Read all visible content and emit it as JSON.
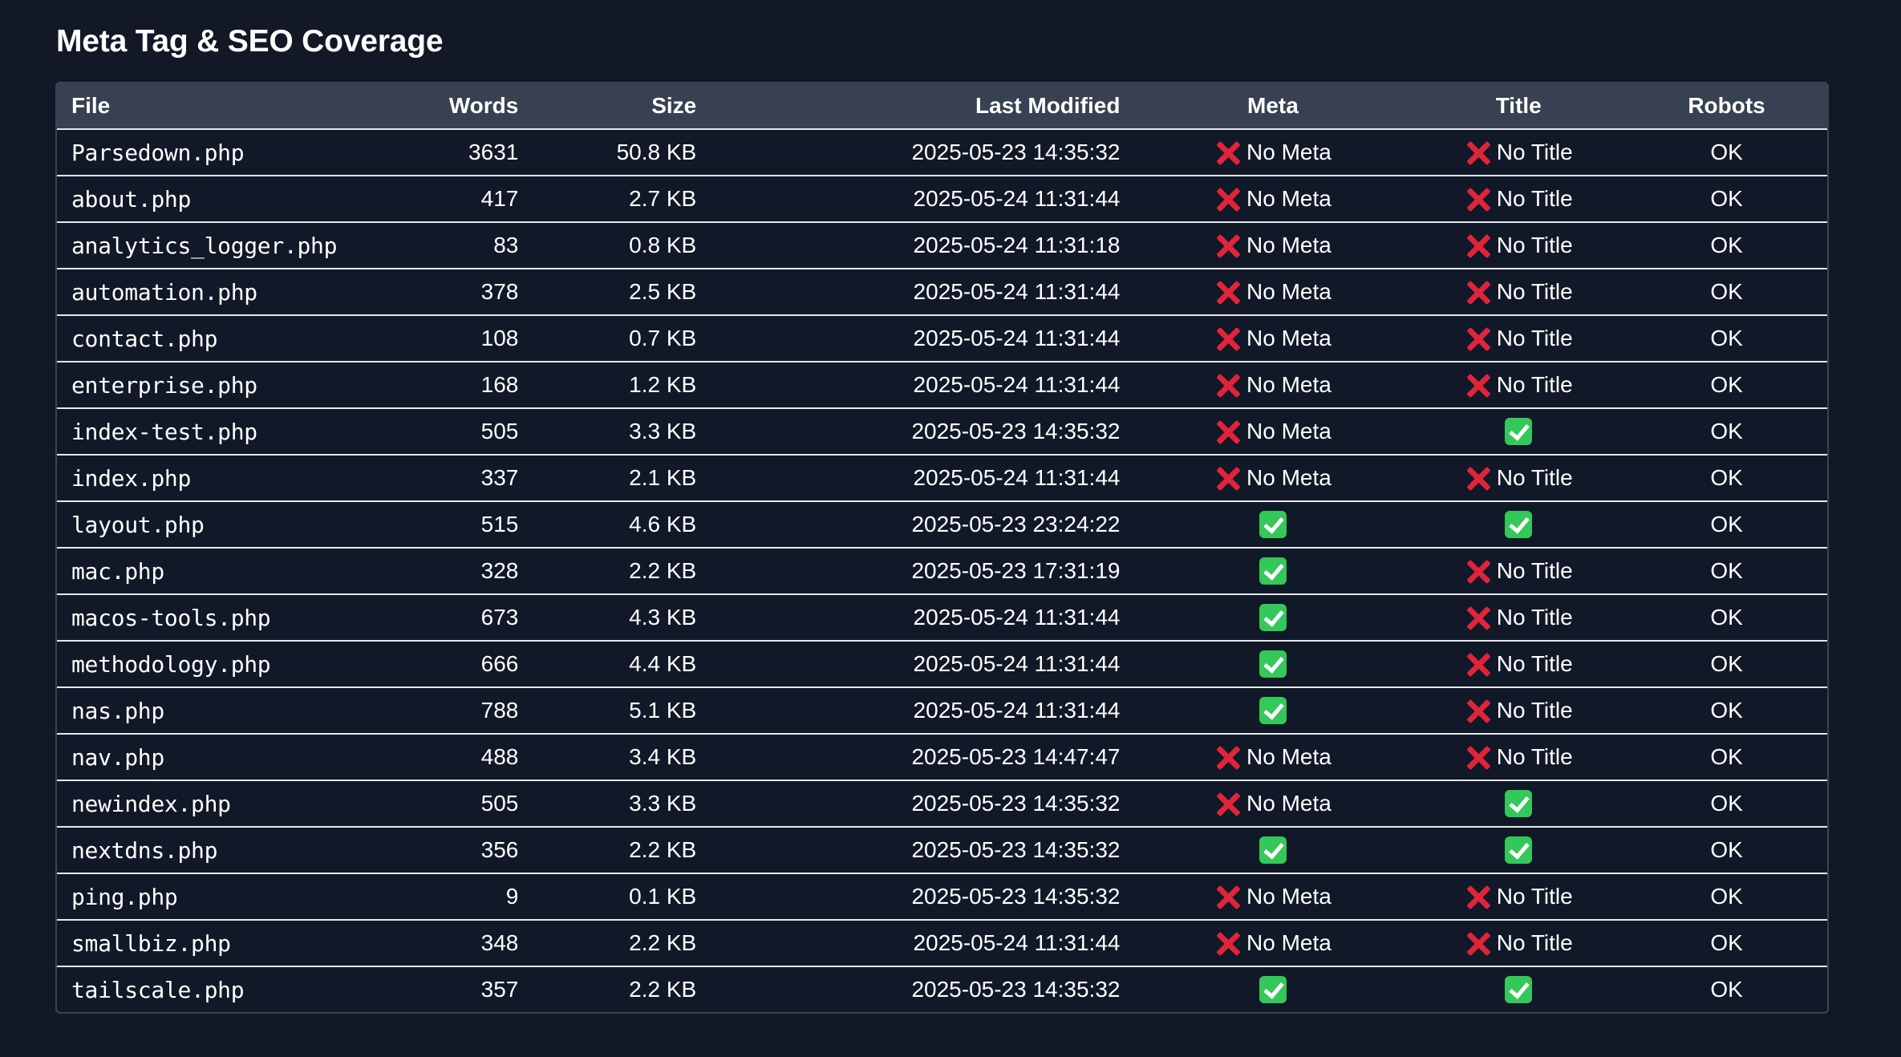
{
  "page": {
    "title": "Meta Tag & SEO Coverage"
  },
  "table": {
    "columns": [
      "File",
      "Words",
      "Size",
      "Last Modified",
      "Meta",
      "Title",
      "Robots"
    ],
    "no_meta_label": "No Meta",
    "no_title_label": "No Title",
    "rows": [
      {
        "file": "Parsedown.php",
        "words": "3631",
        "size": "50.8 KB",
        "modified": "2025-05-23 14:35:32",
        "meta": false,
        "title": false,
        "robots": "OK"
      },
      {
        "file": "about.php",
        "words": "417",
        "size": "2.7 KB",
        "modified": "2025-05-24 11:31:44",
        "meta": false,
        "title": false,
        "robots": "OK"
      },
      {
        "file": "analytics_logger.php",
        "words": "83",
        "size": "0.8 KB",
        "modified": "2025-05-24 11:31:18",
        "meta": false,
        "title": false,
        "robots": "OK"
      },
      {
        "file": "automation.php",
        "words": "378",
        "size": "2.5 KB",
        "modified": "2025-05-24 11:31:44",
        "meta": false,
        "title": false,
        "robots": "OK"
      },
      {
        "file": "contact.php",
        "words": "108",
        "size": "0.7 KB",
        "modified": "2025-05-24 11:31:44",
        "meta": false,
        "title": false,
        "robots": "OK"
      },
      {
        "file": "enterprise.php",
        "words": "168",
        "size": "1.2 KB",
        "modified": "2025-05-24 11:31:44",
        "meta": false,
        "title": false,
        "robots": "OK"
      },
      {
        "file": "index-test.php",
        "words": "505",
        "size": "3.3 KB",
        "modified": "2025-05-23 14:35:32",
        "meta": false,
        "title": true,
        "robots": "OK"
      },
      {
        "file": "index.php",
        "words": "337",
        "size": "2.1 KB",
        "modified": "2025-05-24 11:31:44",
        "meta": false,
        "title": false,
        "robots": "OK"
      },
      {
        "file": "layout.php",
        "words": "515",
        "size": "4.6 KB",
        "modified": "2025-05-23 23:24:22",
        "meta": true,
        "title": true,
        "robots": "OK"
      },
      {
        "file": "mac.php",
        "words": "328",
        "size": "2.2 KB",
        "modified": "2025-05-23 17:31:19",
        "meta": true,
        "title": false,
        "robots": "OK"
      },
      {
        "file": "macos-tools.php",
        "words": "673",
        "size": "4.3 KB",
        "modified": "2025-05-24 11:31:44",
        "meta": true,
        "title": false,
        "robots": "OK"
      },
      {
        "file": "methodology.php",
        "words": "666",
        "size": "4.4 KB",
        "modified": "2025-05-24 11:31:44",
        "meta": true,
        "title": false,
        "robots": "OK"
      },
      {
        "file": "nas.php",
        "words": "788",
        "size": "5.1 KB",
        "modified": "2025-05-24 11:31:44",
        "meta": true,
        "title": false,
        "robots": "OK"
      },
      {
        "file": "nav.php",
        "words": "488",
        "size": "3.4 KB",
        "modified": "2025-05-23 14:47:47",
        "meta": false,
        "title": false,
        "robots": "OK"
      },
      {
        "file": "newindex.php",
        "words": "505",
        "size": "3.3 KB",
        "modified": "2025-05-23 14:35:32",
        "meta": false,
        "title": true,
        "robots": "OK"
      },
      {
        "file": "nextdns.php",
        "words": "356",
        "size": "2.2 KB",
        "modified": "2025-05-23 14:35:32",
        "meta": true,
        "title": true,
        "robots": "OK"
      },
      {
        "file": "ping.php",
        "words": "9",
        "size": "0.1 KB",
        "modified": "2025-05-23 14:35:32",
        "meta": false,
        "title": false,
        "robots": "OK"
      },
      {
        "file": "smallbiz.php",
        "words": "348",
        "size": "2.2 KB",
        "modified": "2025-05-24 11:31:44",
        "meta": false,
        "title": false,
        "robots": "OK"
      },
      {
        "file": "tailscale.php",
        "words": "357",
        "size": "2.2 KB",
        "modified": "2025-05-23 14:35:32",
        "meta": true,
        "title": true,
        "robots": "OK"
      }
    ]
  },
  "icons": {
    "missing": "cross-mark-icon",
    "present": "check-mark-icon"
  },
  "colors": {
    "background": "#121826",
    "header_row": "#374151",
    "cross": "#e0243a",
    "check": "#34c759"
  }
}
